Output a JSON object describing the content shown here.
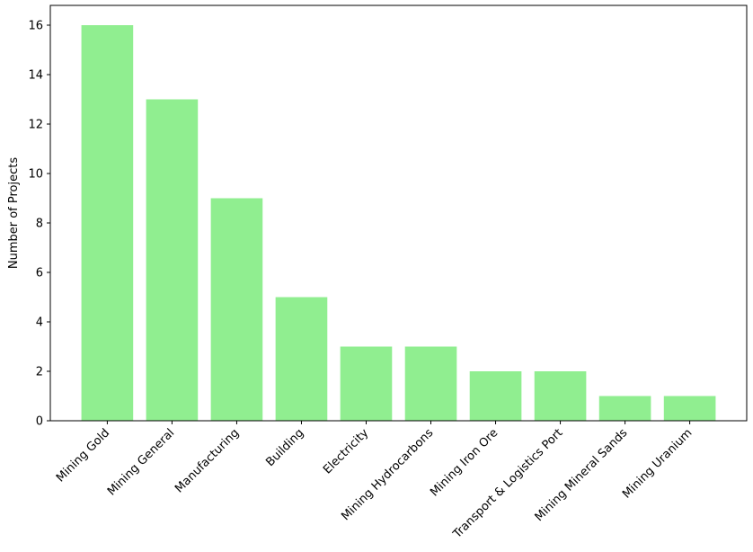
{
  "chart_data": {
    "type": "bar",
    "title": "",
    "xlabel": "",
    "ylabel": "Number of Projects",
    "categories": [
      "Mining Gold",
      "Mining General",
      "Manufacturing",
      "Building",
      "Electricity",
      "Mining Hydrocarbons",
      "Mining Iron Ore",
      "Transport & Logistics Port",
      "Mining Mineral Sands",
      "Mining Uranium"
    ],
    "values": [
      16,
      13,
      9,
      5,
      3,
      3,
      2,
      2,
      1,
      1
    ],
    "ylim": [
      0,
      16.8
    ],
    "yticks": [
      0,
      2,
      4,
      6,
      8,
      10,
      12,
      14,
      16
    ],
    "grid": false,
    "bar_color": "#90ee90"
  }
}
